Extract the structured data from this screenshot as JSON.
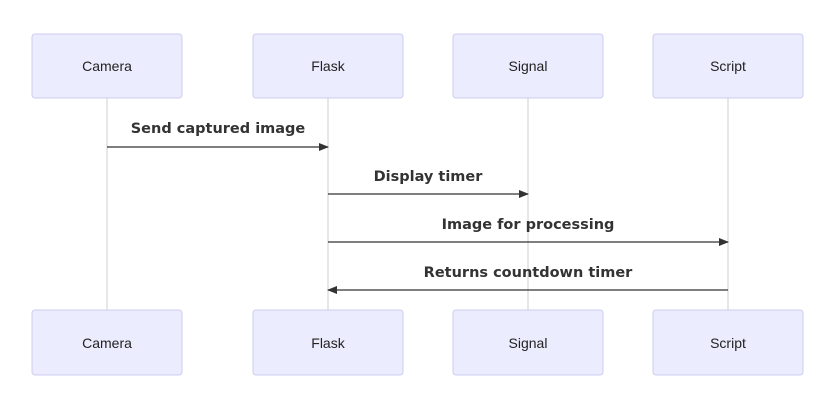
{
  "participants": [
    {
      "id": "camera",
      "label": "Camera"
    },
    {
      "id": "flask",
      "label": "Flask"
    },
    {
      "id": "signal",
      "label": "Signal"
    },
    {
      "id": "script",
      "label": "Script"
    }
  ],
  "messages": [
    {
      "from": "camera",
      "to": "flask",
      "label": "Send captured image"
    },
    {
      "from": "flask",
      "to": "signal",
      "label": "Display timer"
    },
    {
      "from": "flask",
      "to": "script",
      "label": "Image for processing"
    },
    {
      "from": "script",
      "to": "flask",
      "label": "Returns countdown timer"
    }
  ],
  "colors": {
    "actor_fill": "#ececff",
    "actor_border": "#cdcdf0",
    "lifeline": "#cfcfcf",
    "arrow": "#333333"
  }
}
